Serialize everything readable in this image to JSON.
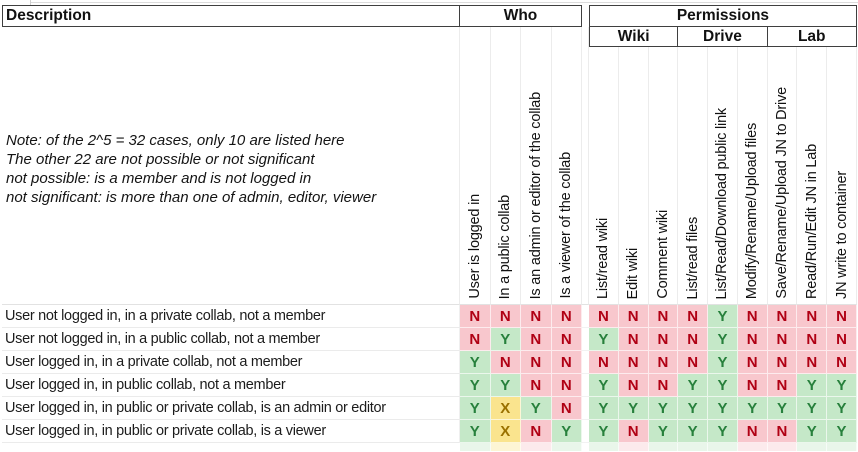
{
  "sheet": {
    "headers": {
      "description": "Description",
      "who": "Who",
      "permissions": "Permissions",
      "groups": [
        "Wiki",
        "Drive",
        "Lab"
      ]
    },
    "note_lines": [
      "Note: of the 2^5 = 32 cases, only 10 are listed here",
      "The other 22 are not possible or not significant",
      "not possible: is a member and is not logged in",
      "not significant: is more than one of admin, editor, viewer"
    ],
    "who_columns": [
      "User is logged in",
      "In a public collab",
      "Is an admin or editor of the collab",
      "Is a viewer of the collab"
    ],
    "permission_columns": [
      {
        "group": "Wiki",
        "label": "List/read wiki"
      },
      {
        "group": "Wiki",
        "label": "Edit wiki"
      },
      {
        "group": "Wiki",
        "label": "Comment wiki"
      },
      {
        "group": "Drive",
        "label": "List/read files"
      },
      {
        "group": "Drive",
        "label": "List/Read/Download public link"
      },
      {
        "group": "Drive",
        "label": "Modify/Rename/Upload files"
      },
      {
        "group": "Lab",
        "label": "Save/Rename/Upload JN to Drive"
      },
      {
        "group": "Lab",
        "label": "Read/Run/Edit JN in Lab"
      },
      {
        "group": "Lab",
        "label": "JN write to container"
      }
    ],
    "rows": [
      {
        "description": "User not logged in, in a private collab, not a member",
        "who": [
          "N",
          "N",
          "N",
          "N"
        ],
        "permissions": [
          "N",
          "N",
          "N",
          "N",
          "Y",
          "N",
          "N",
          "N",
          "N"
        ]
      },
      {
        "description": "User not logged in, in a public collab, not a member",
        "who": [
          "N",
          "Y",
          "N",
          "N"
        ],
        "permissions": [
          "Y",
          "N",
          "N",
          "N",
          "Y",
          "N",
          "N",
          "N",
          "N"
        ]
      },
      {
        "description": "User logged in, in a private collab, not a member",
        "who": [
          "Y",
          "N",
          "N",
          "N"
        ],
        "permissions": [
          "N",
          "N",
          "N",
          "N",
          "Y",
          "N",
          "N",
          "N",
          "N"
        ]
      },
      {
        "description": "User logged in, in public collab, not a member",
        "who": [
          "Y",
          "Y",
          "N",
          "N"
        ],
        "permissions": [
          "Y",
          "N",
          "N",
          "Y",
          "Y",
          "N",
          "N",
          "Y",
          "Y"
        ]
      },
      {
        "description": "User logged in, in public or private collab, is an admin or editor",
        "who": [
          "Y",
          "X",
          "Y",
          "N"
        ],
        "permissions": [
          "Y",
          "Y",
          "Y",
          "Y",
          "Y",
          "Y",
          "Y",
          "Y",
          "Y"
        ]
      },
      {
        "description": "User logged in, in public or private collab, is a viewer",
        "who": [
          "Y",
          "X",
          "N",
          "Y"
        ],
        "permissions": [
          "Y",
          "N",
          "Y",
          "Y",
          "Y",
          "N",
          "N",
          "Y",
          "Y"
        ]
      }
    ],
    "legend_colors": {
      "yes_bg": "#C5E8C8",
      "yes_text": "#27803C",
      "no_bg": "#F8C7CD",
      "no_text": "#B00014",
      "maybe_bg": "#FAE48E",
      "maybe_text": "#9A7100"
    }
  }
}
